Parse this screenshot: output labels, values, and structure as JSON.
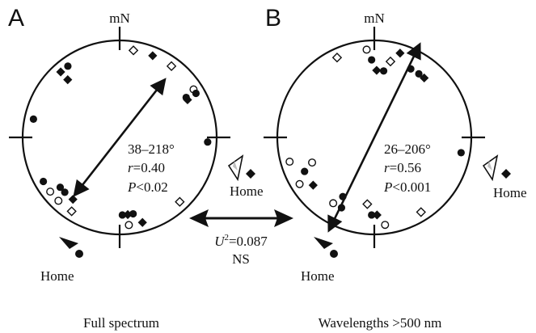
{
  "chart_data": [
    {
      "type": "circular",
      "panel_letter": "A",
      "north_label": "mN",
      "caption": "Full spectrum",
      "stats": {
        "range": "38–218°",
        "r_label": "r",
        "r_value": "=0.40",
        "p_label": "P",
        "p_value": "<0.02"
      },
      "mean_axis_deg": 38,
      "mean_vector_length": 0.4,
      "home_outer": {
        "label": "Home",
        "symbol": "open-triangle",
        "bearing_deg": 112
      },
      "home_inner": {
        "label": "Home",
        "symbol": "filled-triangle",
        "bearing_deg": 210
      },
      "points": [
        {
          "bearing": 9,
          "symbol": "open-diamond"
        },
        {
          "bearing": 22,
          "symbol": "filled-diamond"
        },
        {
          "bearing": 36,
          "symbol": "open-diamond"
        },
        {
          "bearing": 57,
          "symbol": "open-circle"
        },
        {
          "bearing": 59,
          "symbol": "filled-circle",
          "ring": 2
        },
        {
          "bearing": 61,
          "symbol": "filled-diamond",
          "ring": 2
        },
        {
          "bearing": 60,
          "symbol": "filled-circle"
        },
        {
          "bearing": 93,
          "symbol": "filled-circle"
        },
        {
          "bearing": 137,
          "symbol": "open-diamond"
        },
        {
          "bearing": 165,
          "symbol": "filled-diamond"
        },
        {
          "bearing": 170,
          "symbol": "filled-circle",
          "ring": 2
        },
        {
          "bearing": 174,
          "symbol": "open-circle"
        },
        {
          "bearing": 174,
          "symbol": "filled-diamond",
          "ring": 2
        },
        {
          "bearing": 178,
          "symbol": "filled-circle",
          "ring": 2
        },
        {
          "bearing": 213,
          "symbol": "open-diamond"
        },
        {
          "bearing": 217,
          "symbol": "filled-diamond",
          "ring": 2
        },
        {
          "bearing": 225,
          "symbol": "filled-circle",
          "ring": 2
        },
        {
          "bearing": 224,
          "symbol": "open-circle"
        },
        {
          "bearing": 230,
          "symbol": "filled-circle",
          "ring": 2
        },
        {
          "bearing": 232,
          "symbol": "open-circle"
        },
        {
          "bearing": 240,
          "symbol": "filled-circle"
        },
        {
          "bearing": 282,
          "symbol": "filled-circle"
        },
        {
          "bearing": 318,
          "symbol": "filled-diamond",
          "ring": 2
        },
        {
          "bearing": 324,
          "symbol": "filled-circle"
        },
        {
          "bearing": 318,
          "symbol": "filled-diamond"
        }
      ]
    },
    {
      "type": "circular",
      "panel_letter": "B",
      "north_label": "mN",
      "caption": "Wavelengths >500 nm",
      "stats": {
        "range": "26–206°",
        "r_label": "r",
        "r_value": "=0.56",
        "p_label": "P",
        "p_value": "<0.001"
      },
      "mean_axis_deg": 26,
      "mean_vector_length": 0.56,
      "home_outer": {
        "label": "Home",
        "symbol": "open-triangle",
        "bearing_deg": 112
      },
      "home_inner": {
        "label": "Home",
        "symbol": "filled-triangle",
        "bearing_deg": 210
      },
      "points": [
        {
          "bearing": 335,
          "symbol": "open-diamond"
        },
        {
          "bearing": 355,
          "symbol": "open-circle"
        },
        {
          "bearing": 358,
          "symbol": "filled-circle",
          "ring": 2
        },
        {
          "bearing": 2,
          "symbol": "filled-diamond",
          "ring": 3
        },
        {
          "bearing": 8,
          "symbol": "filled-circle",
          "ring": 3
        },
        {
          "bearing": 12,
          "symbol": "open-diamond",
          "ring": 2
        },
        {
          "bearing": 17,
          "symbol": "filled-diamond"
        },
        {
          "bearing": 28,
          "symbol": "filled-circle",
          "ring": 2
        },
        {
          "bearing": 35,
          "symbol": "filled-circle",
          "ring": 2
        },
        {
          "bearing": 40,
          "symbol": "filled-diamond",
          "ring": 2
        },
        {
          "bearing": 100,
          "symbol": "filled-circle"
        },
        {
          "bearing": 148,
          "symbol": "open-diamond"
        },
        {
          "bearing": 173,
          "symbol": "open-circle"
        },
        {
          "bearing": 178,
          "symbol": "filled-diamond",
          "ring": 2
        },
        {
          "bearing": 182,
          "symbol": "filled-circle",
          "ring": 2
        },
        {
          "bearing": 186,
          "symbol": "open-diamond",
          "ring": 3
        },
        {
          "bearing": 205,
          "symbol": "filled-circle",
          "ring": 2
        },
        {
          "bearing": 208,
          "symbol": "filled-circle",
          "ring": 3
        },
        {
          "bearing": 212,
          "symbol": "open-circle",
          "ring": 2
        },
        {
          "bearing": 232,
          "symbol": "filled-diamond",
          "ring": 2
        },
        {
          "bearing": 238,
          "symbol": "open-circle"
        },
        {
          "bearing": 244,
          "symbol": "filled-circle",
          "ring": 2
        },
        {
          "bearing": 248,
          "symbol": "open-circle",
          "ring": 3
        },
        {
          "bearing": 254,
          "symbol": "open-circle"
        }
      ]
    }
  ],
  "comparison": {
    "u_label": "U",
    "u_sup": "2",
    "u_value": "=0.087",
    "significance": "NS"
  }
}
